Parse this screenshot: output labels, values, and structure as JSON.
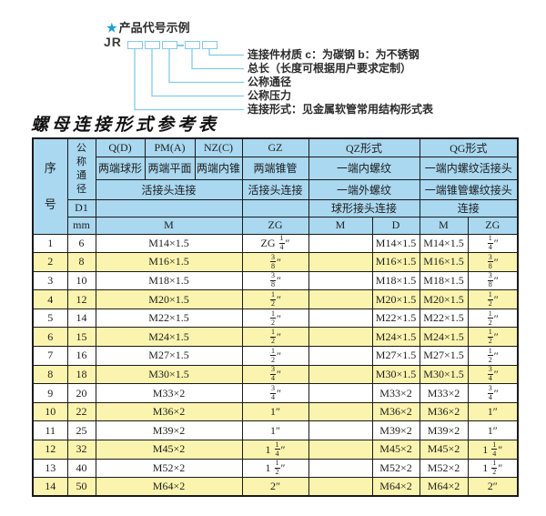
{
  "diagram": {
    "star": "★",
    "title": "产品代号示例",
    "prefix": "JR",
    "callouts": [
      "连接件材质  c：为碳钢  b：为不锈钢",
      "总长（长度可根据用户要求定制）",
      "公称通径",
      "公称压力",
      "连接形式：见金属软管常用结构形式表"
    ]
  },
  "table": {
    "title": "螺母连接形式参考表",
    "colors": {
      "header_bg": "#A9D8F0",
      "row_alt_bg": "#FBF4AE",
      "row_bg": "#FFFFFF",
      "grid": "#1A1A1A",
      "line_blue": "#85C9E8"
    },
    "header_rows": [
      {
        "cells": [
          {
            "t": "序号",
            "rs": 5,
            "vert": true
          },
          {
            "t": "公称通径",
            "rs": 3,
            "vert": true
          },
          {
            "t": "Q(D)"
          },
          {
            "t": "PM(A)"
          },
          {
            "t": "NZ(C)"
          },
          {
            "t": "GZ"
          },
          {
            "t": "QZ形式",
            "cs": 2
          },
          {
            "t": "QG形式",
            "cs": 2
          }
        ]
      },
      {
        "cells": [
          {
            "t": "两端球形"
          },
          {
            "t": "两端平面"
          },
          {
            "t": "两端内锥"
          },
          {
            "t": "两端锥管"
          },
          {
            "t": "一端内螺纹",
            "cs": 2
          },
          {
            "t": "一端内螺纹活接头",
            "cs": 2
          }
        ]
      },
      {
        "cells": [
          {
            "t": "活接头连接",
            "cs": 3
          },
          {
            "t": "活接头连接"
          },
          {
            "t": "一端外螺纹",
            "cs": 2
          },
          {
            "t": "一端锥管螺纹接头",
            "cs": 2
          }
        ]
      },
      {
        "cells": [
          {
            "t": "D1"
          },
          {
            "t": "",
            "cs": 3
          },
          {
            "t": ""
          },
          {
            "t": "球形接头连接",
            "cs": 2
          },
          {
            "t": "连接",
            "cs": 2
          }
        ]
      },
      {
        "cells": [
          {
            "t": "mm"
          },
          {
            "t": "M",
            "cs": 3
          },
          {
            "t": "ZG"
          },
          {
            "t": "M"
          },
          {
            "t": "D"
          },
          {
            "t": "M"
          },
          {
            "t": "ZG"
          }
        ]
      }
    ],
    "body_rows": [
      [
        "1",
        "6",
        "M14×1.5",
        "ZG 1/4\"",
        "",
        "M14×1.5",
        "M14×1.5",
        "1/4\""
      ],
      [
        "2",
        "8",
        "M16×1.5",
        "3/8\"",
        "",
        "M16×1.5",
        "M16×1.5",
        "3/8\""
      ],
      [
        "3",
        "10",
        "M18×1.5",
        "3/8\"",
        "",
        "M18×1.5",
        "M18×1.5",
        "3/8\""
      ],
      [
        "4",
        "12",
        "M20×1.5",
        "1/2\"",
        "",
        "M20×1.5",
        "M20×1.5",
        "1/2\""
      ],
      [
        "5",
        "14",
        "M22×1.5",
        "1/2\"",
        "",
        "M22×1.5",
        "M22×1.5",
        "1/2\""
      ],
      [
        "6",
        "15",
        "M24×1.5",
        "1/2\"",
        "",
        "M24×1.5",
        "M24×1.5",
        "1/2\""
      ],
      [
        "7",
        "16",
        "M27×1.5",
        "1/2\"",
        "",
        "M27×1.5",
        "M27×1.5",
        "1/2\""
      ],
      [
        "8",
        "18",
        "M30×1.5",
        "3/4\"",
        "",
        "M30×1.5",
        "M30×1.5",
        "3/4\""
      ],
      [
        "9",
        "20",
        "M33×2",
        "3/4\"",
        "",
        "M33×2",
        "M33×2",
        "3/4\""
      ],
      [
        "10",
        "22",
        "M36×2",
        "1\"",
        "",
        "M36×2",
        "M36×2",
        "1\""
      ],
      [
        "11",
        "25",
        "M39×2",
        "1\"",
        "",
        "M39×2",
        "M39×2",
        "1\""
      ],
      [
        "12",
        "32",
        "M45×2",
        "1 1/4\"",
        "",
        "M45×2",
        "M45×2",
        "1 1/4\""
      ],
      [
        "13",
        "40",
        "M52×2",
        "1 1/2\"",
        "",
        "M52×2",
        "M52×2",
        "1 1/2\""
      ],
      [
        "14",
        "50",
        "M64×2",
        "2\"",
        "",
        "M64×2",
        "M64×2",
        "2\""
      ]
    ]
  }
}
